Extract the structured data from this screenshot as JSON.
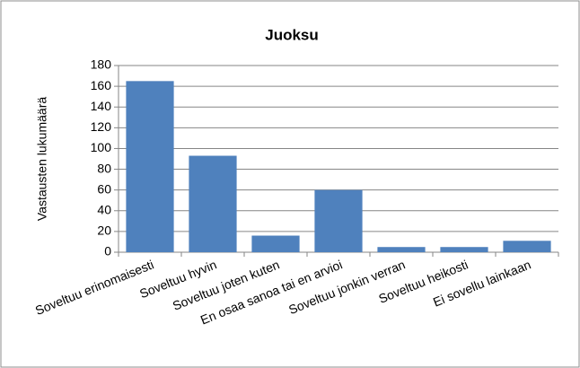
{
  "chart_data": {
    "type": "bar",
    "title": "Juoksu",
    "y_label": "Vastausten lukumäärä",
    "categories": [
      "Soveltuu erinomaisesti",
      "Soveltuu hyvin",
      "Soveltuu joten kuten",
      "En osaa sanoa tai en arvioi",
      "Soveltuu jonkin verran",
      "Soveltuu heikosti",
      "Ei sovellu lainkaan"
    ],
    "values": [
      165,
      93,
      16,
      60,
      5,
      5,
      11
    ],
    "color": "#4f81bd",
    "ylim": [
      0,
      180
    ],
    "yticks": [
      0,
      20,
      40,
      60,
      80,
      100,
      120,
      140,
      160,
      180
    ],
    "grid": true
  }
}
